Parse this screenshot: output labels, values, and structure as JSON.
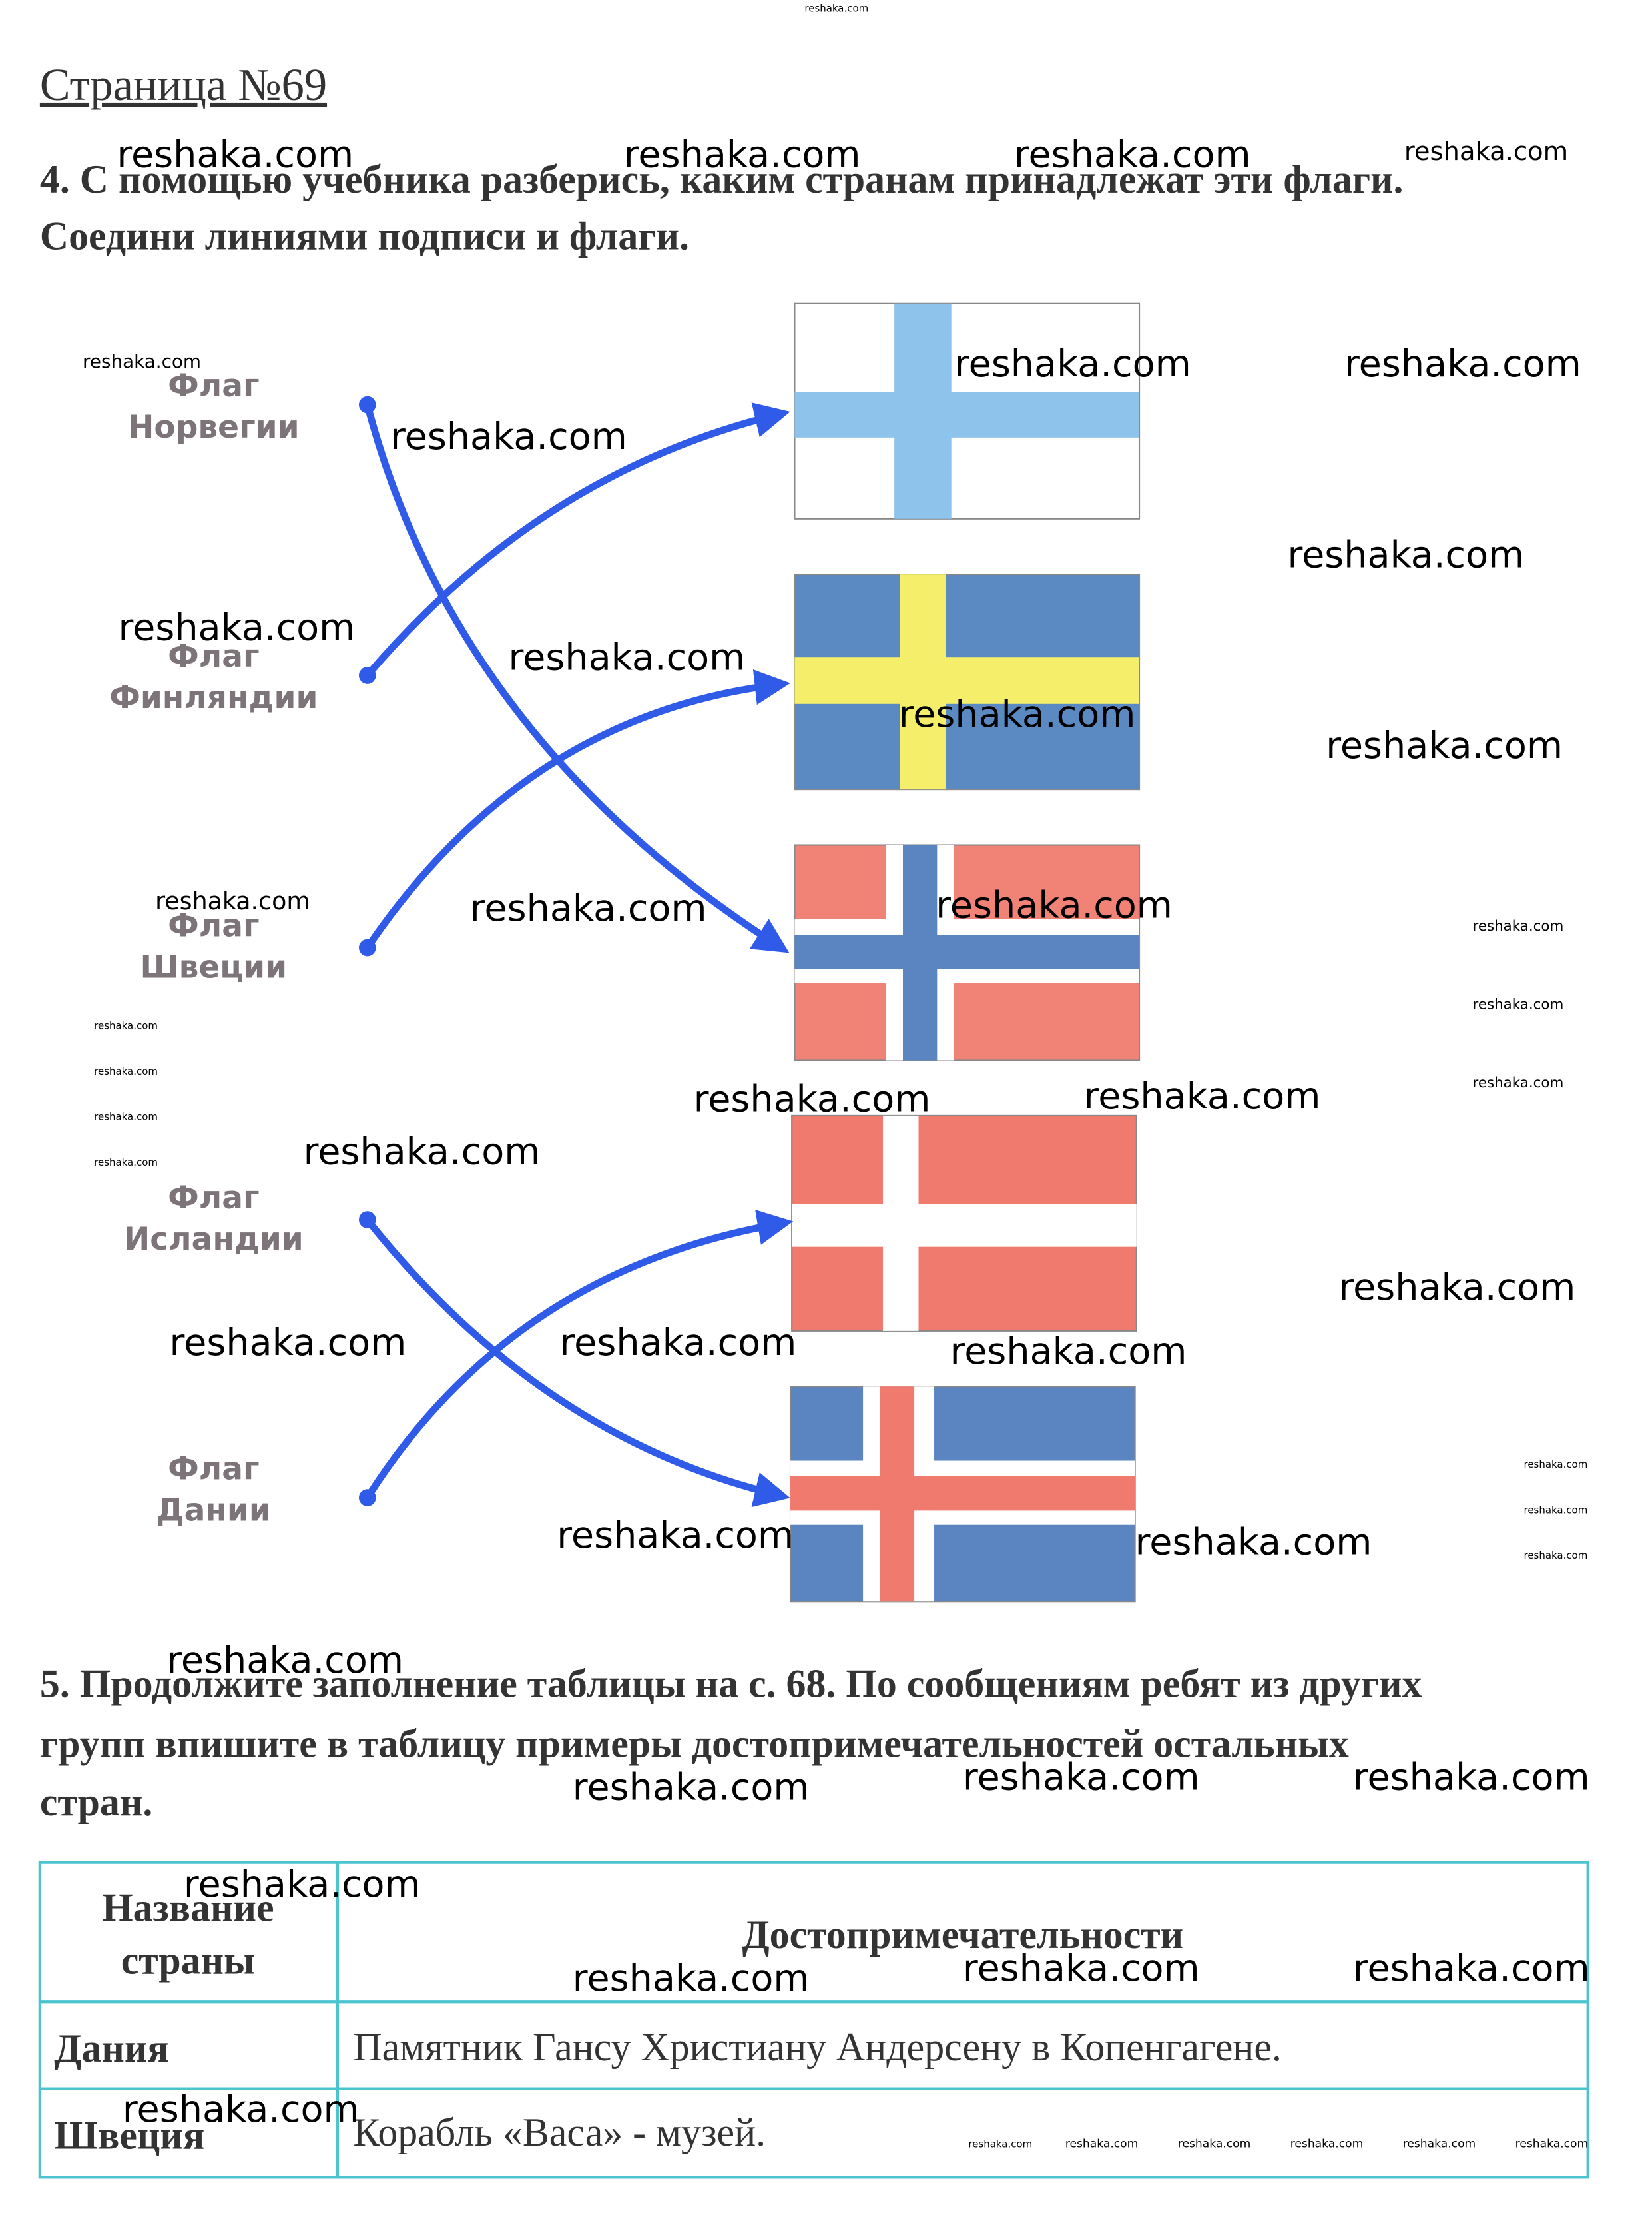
{
  "watermark": "reshaka.com",
  "header": {
    "title": "Страница №69"
  },
  "task4": {
    "lines": [
      "4. С помощью учебника разберись, каким странам принадлежат эти флаги.",
      "Соедини линиями подписи и флаги."
    ],
    "labels": [
      [
        "Флаг",
        "Норвегии"
      ],
      [
        "Флаг",
        "Финляндии"
      ],
      [
        "Флаг",
        "Швеции"
      ],
      [
        "Флаг",
        "Исландии"
      ],
      [
        "Флаг",
        "Дании"
      ]
    ]
  },
  "task5": {
    "lines": [
      "5. Продолжите заполнение таблицы на с. 68. По сообщениям ребят из других",
      "групп впишите в таблицу примеры достопримечательностей остальных",
      "стран."
    ]
  },
  "table": {
    "header": [
      [
        "Название",
        "страны"
      ],
      "Достопримечательности"
    ],
    "rows": [
      [
        "Дания",
        "Памятник Гансу Христиану Андерсену в Копенгагене."
      ],
      [
        "Швеция",
        "Корабль «Васа» - музей."
      ]
    ]
  }
}
